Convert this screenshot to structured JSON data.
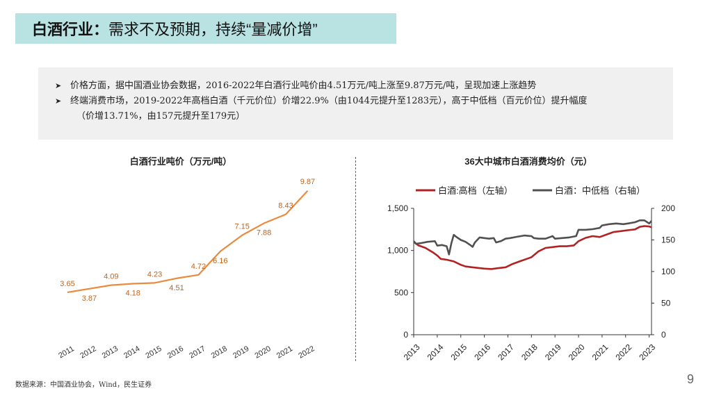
{
  "header": {
    "title_bold": "白酒行业：",
    "title_rest": "需求不及预期，持续“量减价增”"
  },
  "summary": {
    "bullets": [
      "价格方面，据中国酒业协会数据，2016-2022年白酒行业吨价由4.51万元/吨上涨至9.87万元/吨，呈现加速上涨趋势",
      "终端消费市场，2019-2022年高档白酒（千元价位）价增22.9%（由1044元提升至1283元），高于中低档（百元价位）提升幅度",
      "（价增13.71%，由157元提升至179元）"
    ],
    "arrow_icon": "arrow-right-icon"
  },
  "chart_data": [
    {
      "type": "line",
      "title": "白酒行业吨价（万元/吨）",
      "x": [
        "2011",
        "2012",
        "2013",
        "2014",
        "2015",
        "2016",
        "2017",
        "2018",
        "2019",
        "2020",
        "2021",
        "2022"
      ],
      "series": [
        {
          "values": [
            3.65,
            3.87,
            4.09,
            4.18,
            4.23,
            4.51,
            4.72,
            6.16,
            7.15,
            7.88,
            8.43,
            9.87
          ],
          "labels": [
            "3.65",
            "3.87",
            "4.09",
            "4.18",
            "4.23",
            "4.51",
            "4.72",
            "6.16",
            "7.15",
            "7.88",
            "8.43",
            "9.87"
          ],
          "color": "#ea8a3c"
        }
      ],
      "ylim": [
        2.5,
        10.5
      ],
      "grid": false,
      "legend": "none"
    },
    {
      "type": "line",
      "title": "36大中城市白酒消费均价（元）",
      "x_ticks": [
        "2013",
        "2014",
        "2015",
        "2016",
        "2017",
        "2018",
        "2019",
        "2020",
        "2021",
        "2022",
        "2023"
      ],
      "xlim": [
        2013.0,
        2023.1
      ],
      "y_left": {
        "ticks": [
          "0",
          "500",
          "1,000",
          "1,500"
        ],
        "values": [
          0,
          500,
          1000,
          1500
        ],
        "lim": [
          0,
          1500
        ]
      },
      "y_right": {
        "ticks": [
          "0",
          "50",
          "100",
          "150",
          "200"
        ],
        "values": [
          0,
          50,
          100,
          150,
          200
        ],
        "lim": [
          0,
          200
        ]
      },
      "legend": "top",
      "grid": false,
      "series": [
        {
          "name": "白酒:高档（左轴）",
          "axis": "left",
          "color": "#b22222",
          "points": [
            [
              2013.0,
              1100
            ],
            [
              2013.2,
              1060
            ],
            [
              2013.5,
              1030
            ],
            [
              2013.8,
              980
            ],
            [
              2014.0,
              940
            ],
            [
              2014.15,
              900
            ],
            [
              2014.4,
              890
            ],
            [
              2014.7,
              870
            ],
            [
              2015.0,
              830
            ],
            [
              2015.2,
              810
            ],
            [
              2015.5,
              800
            ],
            [
              2015.8,
              790
            ],
            [
              2016.0,
              785
            ],
            [
              2016.3,
              780
            ],
            [
              2016.6,
              790
            ],
            [
              2016.9,
              800
            ],
            [
              2017.2,
              840
            ],
            [
              2017.5,
              870
            ],
            [
              2017.8,
              900
            ],
            [
              2018.0,
              920
            ],
            [
              2018.3,
              990
            ],
            [
              2018.6,
              1030
            ],
            [
              2018.9,
              1040
            ],
            [
              2019.2,
              1050
            ],
            [
              2019.5,
              1050
            ],
            [
              2019.8,
              1060
            ],
            [
              2020.0,
              1110
            ],
            [
              2020.3,
              1150
            ],
            [
              2020.6,
              1170
            ],
            [
              2020.9,
              1160
            ],
            [
              2021.2,
              1190
            ],
            [
              2021.5,
              1220
            ],
            [
              2021.8,
              1230
            ],
            [
              2022.1,
              1240
            ],
            [
              2022.4,
              1250
            ],
            [
              2022.6,
              1280
            ],
            [
              2022.8,
              1290
            ],
            [
              2023.0,
              1285
            ],
            [
              2023.1,
              1275
            ]
          ]
        },
        {
          "name": "白酒：中低档（右轴）",
          "axis": "right",
          "color": "#505050",
          "points": [
            [
              2013.0,
              148
            ],
            [
              2013.1,
              144
            ],
            [
              2013.3,
              145
            ],
            [
              2013.6,
              147
            ],
            [
              2013.9,
              148
            ],
            [
              2014.0,
              141
            ],
            [
              2014.2,
              142
            ],
            [
              2014.4,
              140
            ],
            [
              2014.5,
              127
            ],
            [
              2014.6,
              145
            ],
            [
              2014.7,
              158
            ],
            [
              2014.8,
              155
            ],
            [
              2015.0,
              150
            ],
            [
              2015.2,
              147
            ],
            [
              2015.4,
              142
            ],
            [
              2015.5,
              139
            ],
            [
              2015.6,
              146
            ],
            [
              2015.8,
              154
            ],
            [
              2016.0,
              153
            ],
            [
              2016.2,
              152
            ],
            [
              2016.4,
              153
            ],
            [
              2016.5,
              146
            ],
            [
              2016.7,
              148
            ],
            [
              2016.9,
              152
            ],
            [
              2017.1,
              153
            ],
            [
              2017.4,
              155
            ],
            [
              2017.7,
              157
            ],
            [
              2018.0,
              156
            ],
            [
              2018.1,
              153
            ],
            [
              2018.3,
              152
            ],
            [
              2018.6,
              152
            ],
            [
              2018.9,
              156
            ],
            [
              2019.0,
              152
            ],
            [
              2019.3,
              153
            ],
            [
              2019.6,
              154
            ],
            [
              2019.9,
              156
            ],
            [
              2020.0,
              166
            ],
            [
              2020.3,
              166
            ],
            [
              2020.6,
              167
            ],
            [
              2020.9,
              169
            ],
            [
              2021.0,
              173
            ],
            [
              2021.3,
              175
            ],
            [
              2021.6,
              176
            ],
            [
              2021.9,
              175
            ],
            [
              2022.1,
              176
            ],
            [
              2022.4,
              178
            ],
            [
              2022.6,
              181
            ],
            [
              2022.8,
              181
            ],
            [
              2023.0,
              176
            ],
            [
              2023.1,
              180
            ]
          ]
        }
      ]
    }
  ],
  "footer": {
    "source": "数据来源：中国酒业协会，Wind，民生证券",
    "page": "9"
  }
}
